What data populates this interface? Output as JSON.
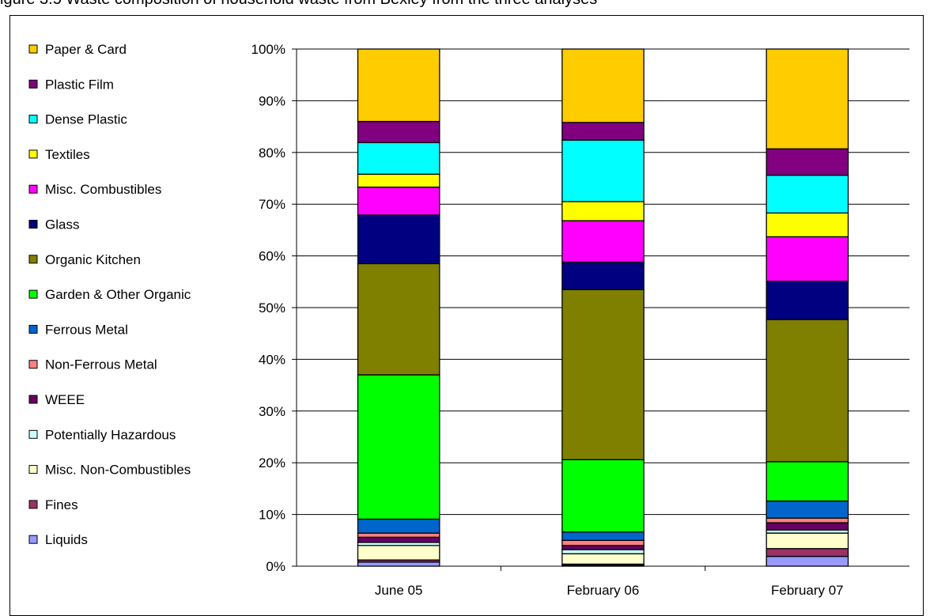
{
  "caption": "igure 3.5 Waste composition of household waste from Bexley from the three analyses",
  "chart_data": {
    "type": "bar",
    "stacked": "percent",
    "categories": [
      "June 05",
      "February 06",
      "February 07"
    ],
    "ylim": [
      0,
      100
    ],
    "yticks": [
      "0%",
      "10%",
      "20%",
      "30%",
      "40%",
      "50%",
      "60%",
      "70%",
      "80%",
      "90%",
      "100%"
    ],
    "grid": true,
    "legend_position": "left",
    "series": [
      {
        "name": "Liquids",
        "color": "#9999ff",
        "values": [
          0.8,
          0.2,
          1.9
        ]
      },
      {
        "name": "Fines",
        "color": "#993366",
        "values": [
          0.4,
          0.2,
          1.5
        ]
      },
      {
        "name": "Misc. Non-Combustibles",
        "color": "#ffffcc",
        "values": [
          2.8,
          2.0,
          3.0
        ]
      },
      {
        "name": "Potentially Hazardous",
        "color": "#ccffff",
        "values": [
          0.6,
          0.8,
          0.6
        ]
      },
      {
        "name": "WEEE",
        "color": "#660066",
        "values": [
          1.0,
          0.8,
          1.4
        ]
      },
      {
        "name": "Non-Ferrous Metal",
        "color": "#ff8080",
        "values": [
          0.8,
          1.0,
          0.9
        ]
      },
      {
        "name": "Ferrous Metal",
        "color": "#0066cc",
        "values": [
          2.7,
          1.6,
          3.3
        ]
      },
      {
        "name": "Garden & Other Organic",
        "color": "#00ff00",
        "values": [
          27.9,
          14.0,
          7.6
        ]
      },
      {
        "name": "Organic Kitchen",
        "color": "#808000",
        "values": [
          21.5,
          32.9,
          27.5
        ]
      },
      {
        "name": "Glass",
        "color": "#000080",
        "values": [
          9.4,
          5.3,
          7.4
        ]
      },
      {
        "name": "Misc. Combustibles",
        "color": "#ff00ff",
        "values": [
          5.4,
          8.0,
          8.6
        ]
      },
      {
        "name": "Textiles",
        "color": "#ffff00",
        "values": [
          2.5,
          3.7,
          4.6
        ]
      },
      {
        "name": "Dense Plastic",
        "color": "#00ffff",
        "values": [
          6.1,
          11.9,
          7.3
        ]
      },
      {
        "name": "Plastic Film",
        "color": "#800080",
        "values": [
          4.1,
          3.4,
          5.1
        ]
      },
      {
        "name": "Paper & Card",
        "color": "#ffcc00",
        "values": [
          14.0,
          14.2,
          19.3
        ]
      }
    ]
  }
}
